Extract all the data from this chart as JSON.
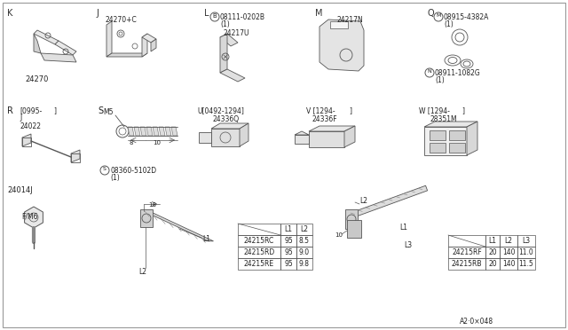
{
  "bg_color": "#ffffff",
  "part_number_bottom": "A2·0×048",
  "table1": {
    "headers": [
      "",
      "L1",
      "L2"
    ],
    "rows": [
      [
        "24215RC",
        "95",
        "8.5"
      ],
      [
        "24215RD",
        "95",
        "9.0"
      ],
      [
        "24215RE",
        "95",
        "9.8"
      ]
    ]
  },
  "table2": {
    "headers": [
      "",
      "L1",
      "L2",
      "L3"
    ],
    "rows": [
      [
        "24215RF",
        "20",
        "140",
        "11.0"
      ],
      [
        "24215RB",
        "20",
        "140",
        "11.5"
      ]
    ]
  },
  "gray": "#888888",
  "dark": "#444444",
  "light_gray": "#cccccc"
}
